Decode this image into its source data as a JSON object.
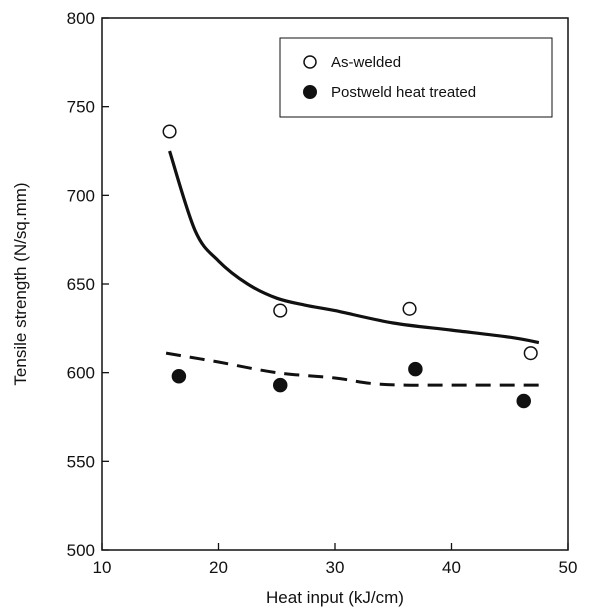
{
  "chart_data": {
    "type": "scatter",
    "title": "",
    "xlabel": "Heat input (kJ/cm)",
    "ylabel": "Tensile strength (N/sq.mm)",
    "xlim": [
      10,
      50
    ],
    "ylim": [
      500,
      800
    ],
    "x_ticks": [
      10,
      20,
      30,
      40,
      50
    ],
    "y_ticks": [
      500,
      550,
      600,
      650,
      700,
      750,
      800
    ],
    "grid": false,
    "legend_position": "top-right",
    "series": [
      {
        "name": "As-welded",
        "marker": "open-circle",
        "points": [
          [
            15.8,
            736
          ],
          [
            25.3,
            635
          ],
          [
            36.4,
            636
          ],
          [
            46.8,
            611
          ]
        ],
        "trend": {
          "style": "solid",
          "points": [
            [
              15.8,
              725
            ],
            [
              18,
              680
            ],
            [
              20,
              663
            ],
            [
              22.5,
              650
            ],
            [
              25,
              642
            ],
            [
              27.5,
              638
            ],
            [
              30,
              635
            ],
            [
              35,
              628
            ],
            [
              40,
              624
            ],
            [
              45,
              620
            ],
            [
              47.5,
              617
            ]
          ]
        }
      },
      {
        "name": "Postweld heat treated",
        "marker": "filled-circle",
        "points": [
          [
            16.6,
            598
          ],
          [
            25.3,
            593
          ],
          [
            36.9,
            602
          ],
          [
            46.2,
            584
          ]
        ],
        "trend": {
          "style": "dashed",
          "points": [
            [
              15.5,
              611
            ],
            [
              20,
              606
            ],
            [
              25,
              600
            ],
            [
              30,
              597
            ],
            [
              33,
              594
            ],
            [
              36,
              593
            ],
            [
              40,
              593
            ],
            [
              45,
              593
            ],
            [
              47.5,
              593
            ]
          ]
        }
      }
    ]
  }
}
